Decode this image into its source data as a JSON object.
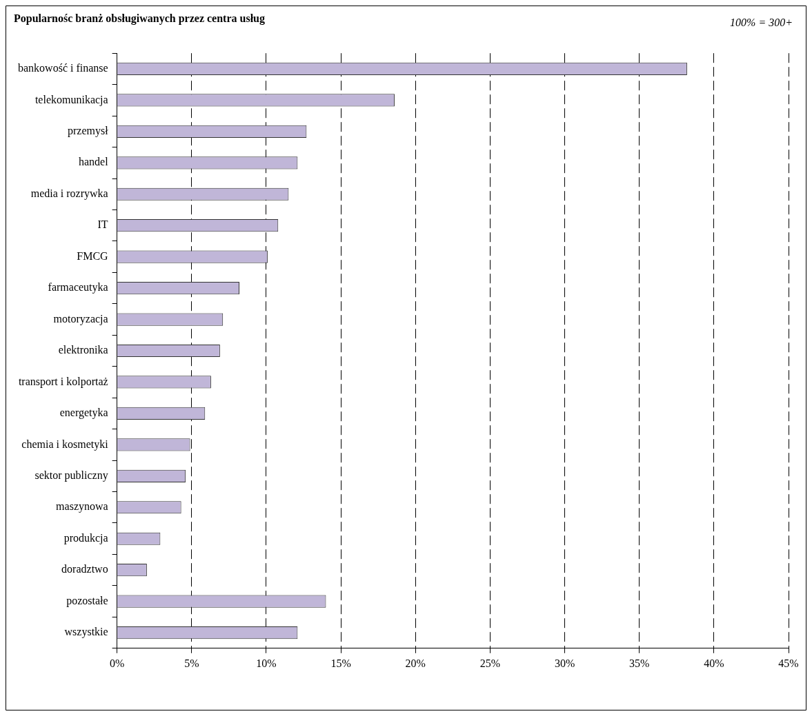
{
  "chart_data": {
    "type": "bar",
    "orientation": "horizontal",
    "title": "Popularnośc branż obsługiwanych przez centra usług",
    "annotations": [
      "100% = 300+"
    ],
    "categories": [
      "bankowość i finanse",
      "telekomunikacja",
      "przemysł",
      "handel",
      "media i rozrywka",
      "IT",
      "FMCG",
      "farmaceutyka",
      "motoryzacja",
      "elektronika",
      "transport i kolportaż",
      "energetyka",
      "chemia i kosmetyki",
      "sektor publiczny",
      "maszynowa",
      "produkcja",
      "doradztwo",
      "pozostałe",
      "wszystkie"
    ],
    "values": [
      38.2,
      18.6,
      12.7,
      12.1,
      11.5,
      10.8,
      10.1,
      8.2,
      7.1,
      6.9,
      6.3,
      5.9,
      4.9,
      4.6,
      4.3,
      2.9,
      2.0,
      14.0,
      12.1
    ],
    "color": "#c0b6d8",
    "xlim": [
      0,
      45
    ],
    "xticks": [
      {
        "value": 0,
        "label": "0%"
      },
      {
        "value": 5,
        "label": "5%"
      },
      {
        "value": 10,
        "label": "10%"
      },
      {
        "value": 15,
        "label": "15%"
      },
      {
        "value": 20,
        "label": "20%"
      },
      {
        "value": 25,
        "label": "25%"
      },
      {
        "value": 30,
        "label": "30%"
      },
      {
        "value": 35,
        "label": "35%"
      },
      {
        "value": 40,
        "label": "40%"
      },
      {
        "value": 45,
        "label": "45%"
      }
    ],
    "grid": "x",
    "legend": false
  }
}
